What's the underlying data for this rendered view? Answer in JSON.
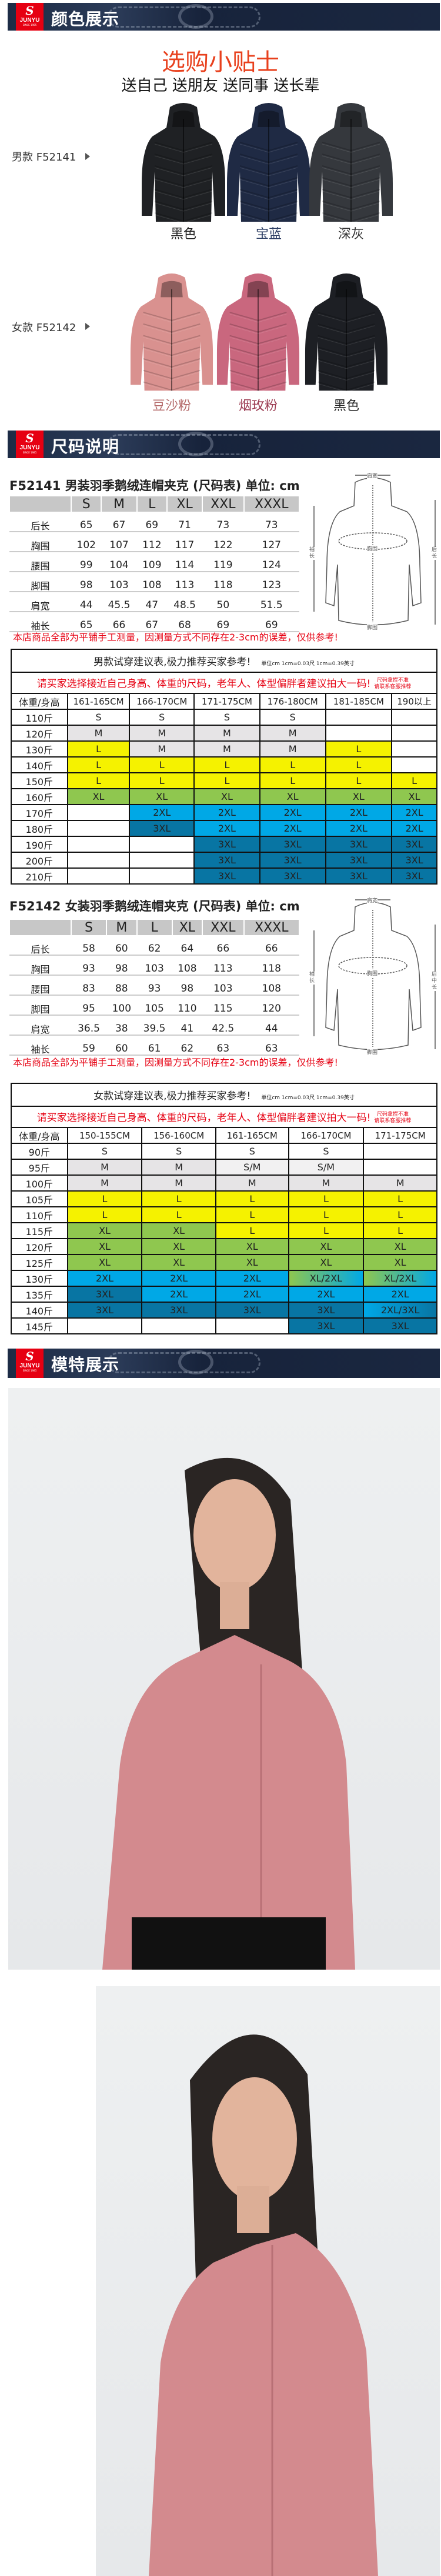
{
  "logo": {
    "mark": "S",
    "brand": "JUNYU",
    "since": "SINCE 1985",
    "color": "#e60012"
  },
  "sections": {
    "colors": "颜色展示",
    "sizes": "尺码说明",
    "models": "模特展示"
  },
  "tips": {
    "title": "选购小贴士",
    "subtitle": "送自己 送朋友 送同事 送长辈",
    "title_color": "#e8401d"
  },
  "men": {
    "label": "男款 F52141",
    "jackets": [
      {
        "name": "黑色",
        "color": "#1f2124",
        "label_color": "#222"
      },
      {
        "name": "宝蓝",
        "color": "#1f2a44",
        "label_color": "#2c3d63"
      },
      {
        "name": "深灰",
        "color": "#35383d",
        "label_color": "#333"
      }
    ]
  },
  "women": {
    "label": "女款 F52142",
    "jackets": [
      {
        "name": "豆沙粉",
        "color": "#d9918f",
        "label_color": "#b46a6a"
      },
      {
        "name": "烟玫粉",
        "color": "#c9677e",
        "label_color": "#9c3c52"
      },
      {
        "name": "黑色",
        "color": "#1d1f24",
        "label_color": "#222"
      }
    ]
  },
  "men_size": {
    "title": "F52141  男装羽季鹅绒连帽夹克 (尺码表) 单位: cm",
    "sizes": [
      "S",
      "M",
      "L",
      "XL",
      "XXL",
      "XXXL"
    ],
    "rows": [
      {
        "label": "后长",
        "values": [
          "65",
          "67",
          "69",
          "71",
          "73",
          "73"
        ]
      },
      {
        "label": "胸围",
        "values": [
          "102",
          "107",
          "112",
          "117",
          "122",
          "127"
        ]
      },
      {
        "label": "腰围",
        "values": [
          "99",
          "104",
          "109",
          "114",
          "119",
          "124"
        ]
      },
      {
        "label": "脚围",
        "values": [
          "98",
          "103",
          "108",
          "113",
          "118",
          "123"
        ]
      },
      {
        "label": "肩宽",
        "values": [
          "44",
          "45.5",
          "47",
          "48.5",
          "50",
          "51.5"
        ]
      },
      {
        "label": "袖长",
        "values": [
          "65",
          "66",
          "67",
          "68",
          "69",
          "69"
        ]
      }
    ],
    "diagram": {
      "shoulder": "肩宽",
      "chest": "胸围",
      "sleeve": "袖长",
      "back": "后长",
      "hem": "脚围"
    }
  },
  "women_size": {
    "title": "F52142  女装羽季鹅绒连帽夹克 (尺码表) 单位: cm",
    "sizes": [
      "S",
      "M",
      "L",
      "XL",
      "XXL",
      "XXXL"
    ],
    "rows": [
      {
        "label": "后长",
        "values": [
          "58",
          "60",
          "62",
          "64",
          "66",
          "66"
        ]
      },
      {
        "label": "胸围",
        "values": [
          "93",
          "98",
          "103",
          "108",
          "113",
          "118"
        ]
      },
      {
        "label": "腰围",
        "values": [
          "83",
          "88",
          "93",
          "98",
          "103",
          "108"
        ]
      },
      {
        "label": "脚围",
        "values": [
          "95",
          "100",
          "105",
          "110",
          "115",
          "120"
        ]
      },
      {
        "label": "肩宽",
        "values": [
          "36.5",
          "38",
          "39.5",
          "41",
          "42.5",
          "44"
        ]
      },
      {
        "label": "袖长",
        "values": [
          "59",
          "60",
          "61",
          "62",
          "63",
          "63"
        ]
      }
    ],
    "diagram": {
      "shoulder": "肩宽",
      "chest": "胸围",
      "sleeve": "袖长",
      "back": "后中长",
      "hem": "脚围"
    }
  },
  "measure_note": "本店商品全部为平铺手工测量，因测量方式不同存在2-3cm的误差，仅供参考!",
  "size_colors": {
    "S": "#ffffff",
    "M": "#e6e4e6",
    "S/M": "#f2f1f2",
    "L": "#f5f200",
    "XL": "#8fc74f",
    "2XL": "#00a8e6",
    "3XL": "#0875a3",
    "XL/2XL": "linear-gradient(90deg,#8fc74f,#00a8e6)",
    "2XL/3XL": "linear-gradient(90deg,#00a8e6,#0875a3)",
    "": "#ffffff"
  },
  "men_rec": {
    "title": "男款试穿建议表,极力推荐买家参考!",
    "unit": "单位cm 1cm=0.03尺 1cm=0.39英寸",
    "advice": "请买家选择接近自己身高、体重的尺码，老年人、体型偏胖者建议拍大一码!",
    "advice_side": [
      "尺码拿捏不准",
      "请联系客服推荐"
    ],
    "corner": "体重/身高",
    "heights": [
      "161-165CM",
      "166-170CM",
      "171-175CM",
      "176-180CM",
      "181-185CM",
      "190以上"
    ],
    "rows": [
      {
        "weight": "110斤",
        "sizes": [
          "S",
          "S",
          "S",
          "S",
          "",
          ""
        ]
      },
      {
        "weight": "120斤",
        "sizes": [
          "M",
          "M",
          "M",
          "M",
          "",
          ""
        ]
      },
      {
        "weight": "130斤",
        "sizes": [
          "L",
          "M",
          "M",
          "M",
          "L",
          ""
        ]
      },
      {
        "weight": "140斤",
        "sizes": [
          "L",
          "L",
          "L",
          "L",
          "L",
          ""
        ]
      },
      {
        "weight": "150斤",
        "sizes": [
          "L",
          "L",
          "L",
          "L",
          "L",
          "L"
        ]
      },
      {
        "weight": "160斤",
        "sizes": [
          "XL",
          "XL",
          "XL",
          "XL",
          "XL",
          "XL"
        ]
      },
      {
        "weight": "170斤",
        "sizes": [
          "",
          "2XL",
          "2XL",
          "2XL",
          "2XL",
          "2XL"
        ]
      },
      {
        "weight": "180斤",
        "sizes": [
          "",
          "3XL",
          "2XL",
          "2XL",
          "2XL",
          "2XL"
        ]
      },
      {
        "weight": "190斤",
        "sizes": [
          "",
          "",
          "3XL",
          "3XL",
          "3XL",
          "3XL"
        ]
      },
      {
        "weight": "200斤",
        "sizes": [
          "",
          "",
          "3XL",
          "3XL",
          "3XL",
          "3XL"
        ]
      },
      {
        "weight": "210斤",
        "sizes": [
          "",
          "",
          "3XL",
          "3XL",
          "3XL",
          "3XL"
        ]
      }
    ]
  },
  "women_rec": {
    "title": "女款试穿建议表,极力推荐买家参考!",
    "unit": "单位cm 1cm=0.03尺 1cm=0.39英寸",
    "advice": "请买家选择接近自己身高、体重的尺码，老年人、体型偏胖者建议拍大一码!",
    "advice_side": [
      "尺码拿捏不准",
      "请联系客服推荐"
    ],
    "corner": "体重/身高",
    "heights": [
      "150-155CM",
      "156-160CM",
      "161-165CM",
      "166-170CM",
      "171-175CM"
    ],
    "rows": [
      {
        "weight": "90斤",
        "sizes": [
          "S",
          "S",
          "S",
          "S",
          ""
        ]
      },
      {
        "weight": "95斤",
        "sizes": [
          "M",
          "M",
          "S/M",
          "S/M",
          ""
        ]
      },
      {
        "weight": "100斤",
        "sizes": [
          "M",
          "M",
          "M",
          "M",
          "M"
        ]
      },
      {
        "weight": "105斤",
        "sizes": [
          "L",
          "L",
          "L",
          "L",
          "L"
        ]
      },
      {
        "weight": "110斤",
        "sizes": [
          "L",
          "L",
          "L",
          "L",
          "L"
        ]
      },
      {
        "weight": "115斤",
        "sizes": [
          "XL",
          "XL",
          "L",
          "L",
          "L"
        ]
      },
      {
        "weight": "120斤",
        "sizes": [
          "XL",
          "XL",
          "XL",
          "XL",
          "XL"
        ]
      },
      {
        "weight": "125斤",
        "sizes": [
          "XL",
          "XL",
          "XL",
          "XL",
          "XL"
        ]
      },
      {
        "weight": "130斤",
        "sizes": [
          "2XL",
          "2XL",
          "2XL",
          "XL/2XL",
          "XL/2XL"
        ]
      },
      {
        "weight": "135斤",
        "sizes": [
          "3XL",
          "2XL",
          "2XL",
          "2XL",
          "2XL"
        ]
      },
      {
        "weight": "140斤",
        "sizes": [
          "3XL",
          "3XL",
          "3XL",
          "3XL",
          "2XL/3XL"
        ]
      },
      {
        "weight": "145斤",
        "sizes": [
          "",
          "",
          "",
          "3XL",
          "3XL"
        ]
      }
    ]
  },
  "model_photos": [
    {
      "jacket_color": "#d38a8e"
    },
    {
      "jacket_color": "#d38a8e"
    }
  ]
}
